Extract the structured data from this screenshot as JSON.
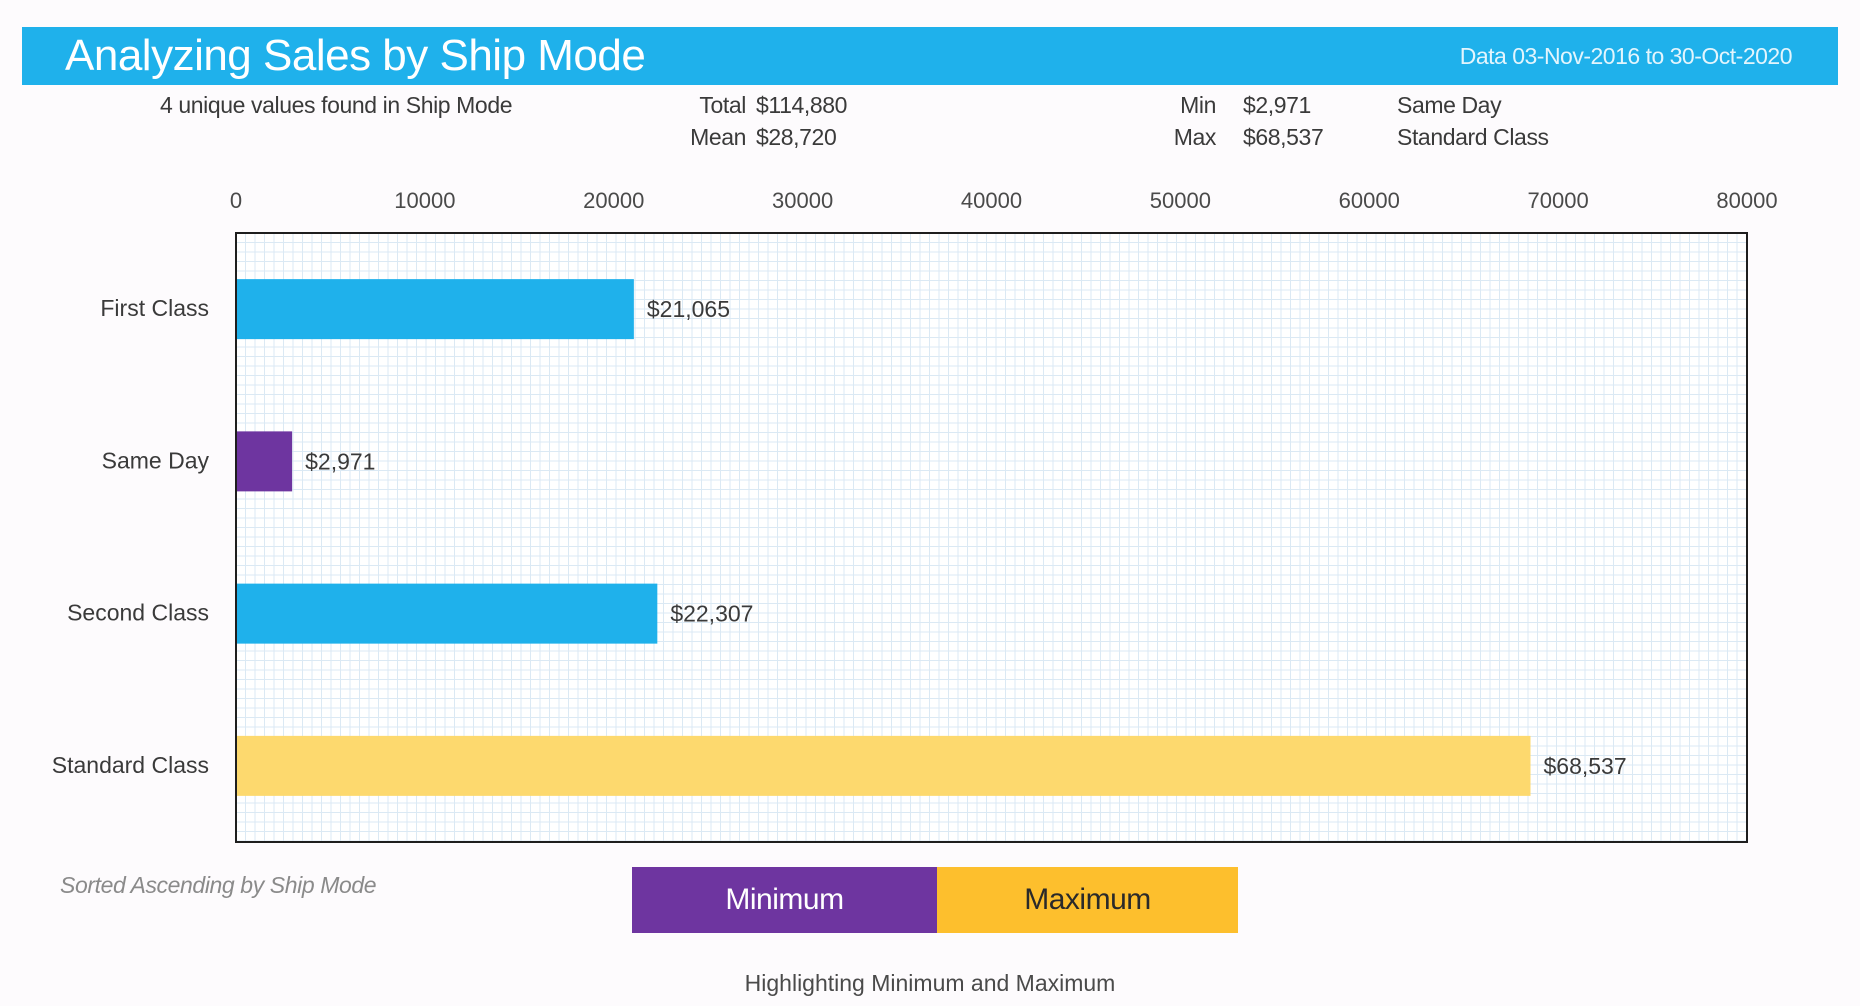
{
  "header": {
    "title": "Analyzing Sales by Ship Mode",
    "date_range": "Data 03-Nov-2016 to 30-Oct-2020"
  },
  "summary": {
    "unique_values": "4 unique values found in Ship Mode",
    "total_label": "Total",
    "total_value": "$114,880",
    "mean_label": "Mean",
    "mean_value": "$28,720",
    "min_label": "Min",
    "min_value": "$2,971",
    "min_category": "Same Day",
    "max_label": "Max",
    "max_value": "$68,537",
    "max_category": "Standard Class"
  },
  "colors": {
    "header": "#1fb1eb",
    "normal_bar": "#1fb1eb",
    "minimum": "#6e35a0",
    "maximum": "#fdd96e",
    "legend_maximum": "#fdbf2d",
    "grid": "#dbe9f4"
  },
  "chart_data": {
    "type": "bar",
    "orientation": "horizontal",
    "categories": [
      "First Class",
      "Same Day",
      "Second Class",
      "Standard Class"
    ],
    "values": [
      21065,
      2971,
      22307,
      68537
    ],
    "data_labels": [
      "$21,065",
      "$2,971",
      "$22,307",
      "$68,537"
    ],
    "highlight": [
      "normal",
      "minimum",
      "normal",
      "maximum"
    ],
    "xlim": [
      0,
      80000
    ],
    "xticks": [
      "0",
      "10000",
      "20000",
      "30000",
      "40000",
      "50000",
      "60000",
      "70000",
      "80000"
    ],
    "x_axis_position": "top",
    "grid": true
  },
  "footer": {
    "sort_note": "Sorted Ascending by Ship Mode",
    "legend_min": "Minimum",
    "legend_max": "Maximum",
    "caption": "Highlighting Minimum and Maximum"
  }
}
